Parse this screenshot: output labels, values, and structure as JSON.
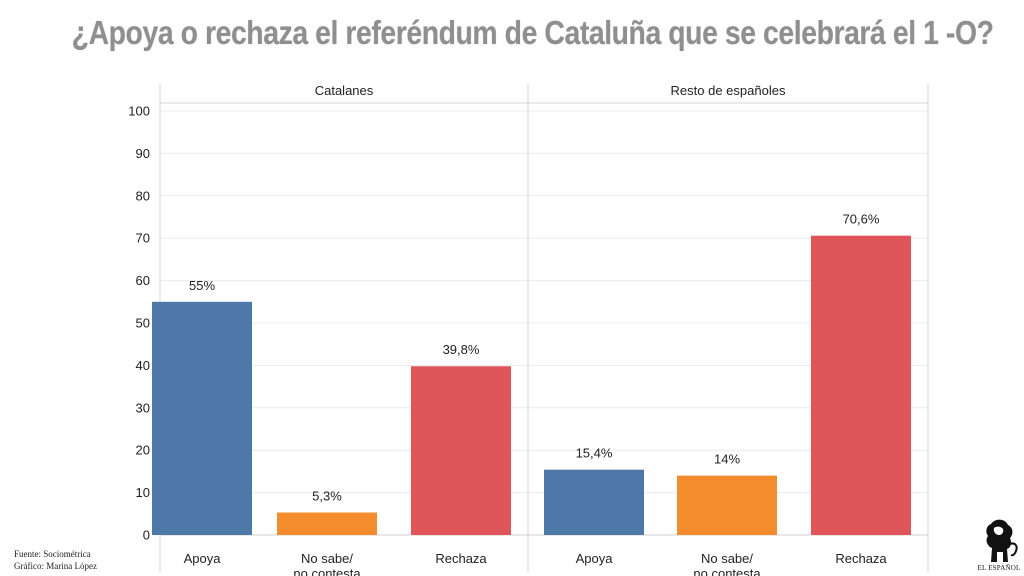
{
  "title": "¿Apoya o rechaza el referéndum de Cataluña que se celebrará el 1 -O?",
  "source": {
    "line1": "Fuente: Sociométrica",
    "line2": "Gráfico: Marina López"
  },
  "logo": {
    "text": "EL ESPAÑOL",
    "icon": "lion-icon"
  },
  "chart_data": {
    "type": "bar",
    "ylim": [
      0,
      100
    ],
    "yticks": [
      "0",
      "10",
      "20",
      "30",
      "40",
      "50",
      "60",
      "70",
      "80",
      "90",
      "100"
    ],
    "grid": true,
    "categories": [
      "Apoya",
      "No sabe/\nno contesta",
      "Rechaza"
    ],
    "colors": [
      "#4e78a8",
      "#f28c2d",
      "#e0555a"
    ],
    "panels": [
      {
        "name": "Catalanes",
        "values": [
          55,
          5.3,
          39.8
        ],
        "labels": [
          "55%",
          "5,3%",
          "39,8%"
        ]
      },
      {
        "name": "Resto de españoles",
        "values": [
          15.4,
          14,
          70.6
        ],
        "labels": [
          "15,4%",
          "14%",
          "70,6%"
        ]
      }
    ]
  }
}
